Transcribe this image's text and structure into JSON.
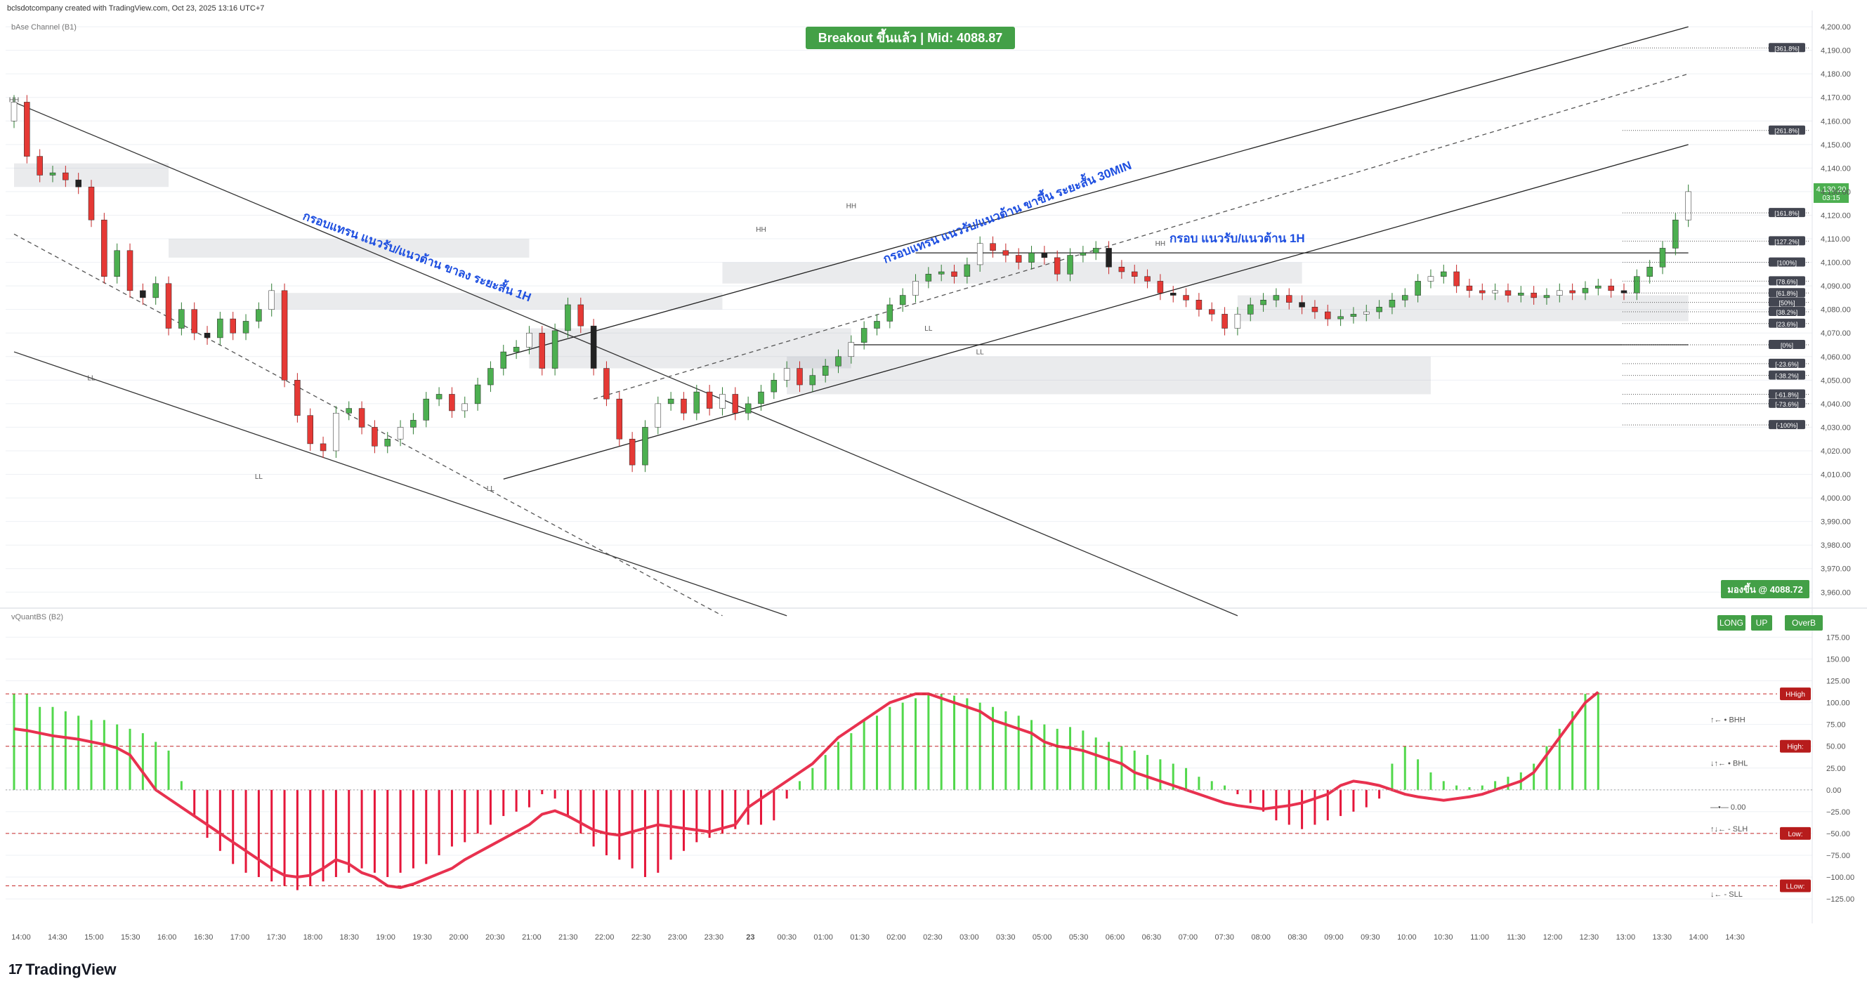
{
  "header": {
    "caption": "bclsdotcompany created with TradingView.com, Oct 23, 2025 13:16 UTC+7"
  },
  "brand": {
    "name": "TradingView",
    "mark": "17"
  },
  "colors": {
    "bull": "#4caf50",
    "bear": "#e53935",
    "accent_green": "#43a047",
    "grid": "#eef0f4"
  },
  "chart_data": [
    {
      "type": "candlestick",
      "indicator_title": "bAse Channel (B1)",
      "y_ticks": [
        "4,200.00",
        "4,190.00",
        "4,180.00",
        "4,170.00",
        "4,160.00",
        "4,150.00",
        "4,140.00",
        "4,130.00",
        "4,120.00",
        "4,110.00",
        "4,100.00",
        "4,090.00",
        "4,080.00",
        "4,070.00",
        "4,060.00",
        "4,050.00",
        "4,040.00",
        "4,030.00",
        "4,020.00",
        "4,010.00",
        "4,000.00",
        "3,990.00",
        "3,980.00",
        "3,970.00",
        "3,960.00"
      ],
      "ylim": [
        3958,
        4203
      ],
      "last_price": "4,130.20",
      "countdown": "03:15",
      "banner": "Breakout ขึ้นแล้ว | Mid: 4088.87",
      "status_box": "มองขึ้น @ 4088.72",
      "annotations": [
        "กรอบแทรน แนวรับ/แนวต้าน ขาลง ระยะสั้น 1H",
        "กรอบแทรน แนวรับ/แนวต้าน ขาขึ้น ระยะสั้น 30MIN",
        "กรอบ แนวรับ/แนวต้าน 1H"
      ],
      "pivots": [
        {
          "label": "HH",
          "t": 0,
          "p": 4168
        },
        {
          "label": "LL",
          "t": 6,
          "p": 4050
        },
        {
          "label": "LL",
          "t": 19,
          "p": 4008
        },
        {
          "label": "LL",
          "t": 37,
          "p": 4003
        },
        {
          "label": "HH",
          "t": 58,
          "p": 4113
        },
        {
          "label": "HH",
          "t": 65,
          "p": 4123
        },
        {
          "label": "LL",
          "t": 71,
          "p": 4071
        },
        {
          "label": "LL",
          "t": 75,
          "p": 4061
        },
        {
          "label": "HH",
          "t": 89,
          "p": 4107
        }
      ],
      "fib_levels": [
        {
          "label": "[361.8%]",
          "price": 4191
        },
        {
          "label": "[261.8%]",
          "price": 4156
        },
        {
          "label": "[161.8%]",
          "price": 4121
        },
        {
          "label": "[127.2%]",
          "price": 4109
        },
        {
          "label": "[100%]",
          "price": 4100
        },
        {
          "label": "[78.6%]",
          "price": 4092
        },
        {
          "label": "[61.8%]",
          "price": 4087
        },
        {
          "label": "[50%]",
          "price": 4083
        },
        {
          "label": "[38.2%]",
          "price": 4079
        },
        {
          "label": "[23.6%]",
          "price": 4074
        },
        {
          "label": "[0%]",
          "price": 4065
        },
        {
          "label": "[-23.6%]",
          "price": 4057
        },
        {
          "label": "[-38.2%]",
          "price": 4052
        },
        {
          "label": "[-61.8%]",
          "price": 4044
        },
        {
          "label": "[-73.6%]",
          "price": 4040
        },
        {
          "label": "[-100%]",
          "price": 4031
        }
      ],
      "closes": [
        4168,
        4145,
        4137,
        4138,
        4135,
        4132,
        4118,
        4094,
        4105,
        4088,
        4085,
        4091,
        4072,
        4080,
        4070,
        4068,
        4076,
        4070,
        4075,
        4080,
        4088,
        4050,
        4035,
        4023,
        4020,
        4036,
        4038,
        4030,
        4022,
        4025,
        4030,
        4033,
        4042,
        4044,
        4037,
        4040,
        4048,
        4055,
        4062,
        4064,
        4070,
        4055,
        4071,
        4082,
        4073,
        4055,
        4042,
        4025,
        4014,
        4030,
        4040,
        4042,
        4036,
        4045,
        4038,
        4044,
        4036,
        4040,
        4045,
        4050,
        4055,
        4048,
        4052,
        4056,
        4060,
        4066,
        4072,
        4075,
        4082,
        4086,
        4092,
        4095,
        4096,
        4094,
        4099,
        4108,
        4105,
        4103,
        4100,
        4104,
        4102,
        4095,
        4103,
        4104,
        4106,
        4098,
        4096,
        4094,
        4092,
        4087,
        4086,
        4084,
        4080,
        4078,
        4072,
        4078,
        4082,
        4084,
        4086,
        4083,
        4081,
        4079,
        4076,
        4077,
        4078,
        4079,
        4081,
        4084,
        4086,
        4092,
        4094,
        4096,
        4090,
        4088,
        4087,
        4088,
        4086,
        4087,
        4085,
        4086,
        4088,
        4087,
        4089,
        4090,
        4088,
        4087,
        4094,
        4098,
        4106,
        4118,
        4130
      ],
      "x_tick_labels": [
        "14:00",
        "14:30",
        "15:00",
        "15:30",
        "16:00",
        "16:30",
        "17:00",
        "17:30",
        "18:00",
        "18:30",
        "19:00",
        "19:30",
        "20:00",
        "20:30",
        "21:00",
        "21:30",
        "22:00",
        "22:30",
        "23:00",
        "23:30",
        "23",
        "00:30",
        "01:00",
        "01:30",
        "02:00",
        "02:30",
        "03:00",
        "03:30",
        "05:00",
        "05:30",
        "06:00",
        "06:30",
        "07:00",
        "07:30",
        "08:00",
        "08:30",
        "09:00",
        "09:30",
        "10:00",
        "10:30",
        "11:00",
        "11:30",
        "12:00",
        "12:30",
        "13:00",
        "13:30",
        "14:00",
        "14:30"
      ]
    },
    {
      "type": "histogram+line",
      "indicator_title": "vQuantBS (B2)",
      "y_ticks": [
        "175.00",
        "150.00",
        "125.00",
        "100.00",
        "75.00",
        "50.00",
        "25.00",
        "0.00",
        "−25.00",
        "−50.00",
        "−75.00",
        "−100.00",
        "−125.00"
      ],
      "ylim": [
        -137,
        185
      ],
      "badges": [
        "LONG",
        "UP",
        "OverB"
      ],
      "level_tags": [
        {
          "label": "HHigh",
          "value": 110
        },
        {
          "label": "High:",
          "value": 50
        },
        {
          "label": "Low:",
          "value": -50
        },
        {
          "label": "LLow:",
          "value": -110
        }
      ],
      "side_labels": [
        "↑← • BHH",
        "↓↑← • BHL",
        "—•— 0.00",
        "↑↓← - SLH",
        "↓← - SLL"
      ],
      "hist": [
        110,
        110,
        95,
        95,
        90,
        85,
        80,
        80,
        75,
        70,
        65,
        55,
        45,
        10,
        -30,
        -55,
        -70,
        -85,
        -95,
        -100,
        -105,
        -110,
        -115,
        -110,
        -105,
        -100,
        -95,
        -90,
        -95,
        -100,
        -95,
        -90,
        -85,
        -75,
        -65,
        -60,
        -50,
        -40,
        -30,
        -25,
        -20,
        -5,
        -10,
        -30,
        -50,
        -65,
        -75,
        -80,
        -90,
        -100,
        -95,
        -80,
        -70,
        -60,
        -55,
        -50,
        -45,
        -40,
        -40,
        -35,
        -10,
        10,
        25,
        40,
        55,
        65,
        80,
        85,
        95,
        100,
        105,
        110,
        110,
        108,
        105,
        100,
        95,
        90,
        85,
        80,
        75,
        70,
        72,
        68,
        60,
        55,
        50,
        45,
        40,
        35,
        30,
        25,
        15,
        10,
        5,
        -5,
        -15,
        -25,
        -35,
        -40,
        -45,
        -40,
        -35,
        -30,
        -25,
        -20,
        -10,
        30,
        50,
        35,
        20,
        10,
        5,
        3,
        5,
        10,
        15,
        20,
        30,
        50,
        70,
        90,
        110,
        112
      ],
      "line": [
        70,
        68,
        65,
        62,
        60,
        58,
        55,
        52,
        48,
        40,
        20,
        0,
        -10,
        -20,
        -30,
        -40,
        -50,
        -60,
        -70,
        -80,
        -90,
        -98,
        -100,
        -98,
        -90,
        -80,
        -85,
        -95,
        -100,
        -110,
        -112,
        -108,
        -102,
        -96,
        -90,
        -80,
        -72,
        -64,
        -56,
        -48,
        -40,
        -28,
        -24,
        -30,
        -38,
        -46,
        -50,
        -52,
        -48,
        -44,
        -40,
        -42,
        -44,
        -46,
        -48,
        -44,
        -40,
        -20,
        -10,
        0,
        10,
        20,
        30,
        45,
        60,
        70,
        80,
        90,
        100,
        105,
        110,
        110,
        105,
        100,
        95,
        90,
        80,
        75,
        70,
        65,
        55,
        50,
        48,
        45,
        40,
        35,
        30,
        20,
        15,
        10,
        5,
        0,
        -5,
        -10,
        -15,
        -18,
        -20,
        -22,
        -20,
        -18,
        -15,
        -10,
        -5,
        5,
        10,
        8,
        5,
        0,
        -5,
        -8,
        -10,
        -12,
        -10,
        -8,
        -5,
        0,
        5,
        10,
        20,
        40,
        60,
        80,
        100,
        112
      ]
    }
  ]
}
